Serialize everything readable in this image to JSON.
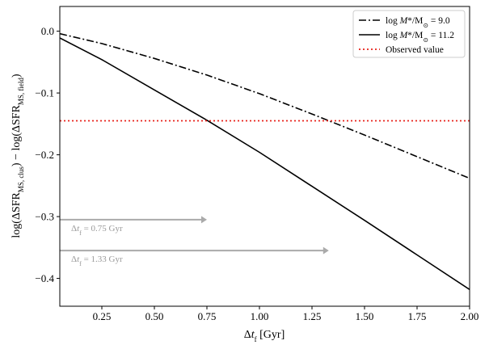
{
  "chart_data": {
    "type": "line",
    "xlabel": "Δt_f [Gyr]",
    "ylabel": "log(ΔSFR_MS,clus) − log(ΔSFR_MS,field)",
    "xlim": [
      0.05,
      2.0
    ],
    "ylim": [
      -0.445,
      0.04
    ],
    "xticks": [
      0.25,
      0.5,
      0.75,
      1.0,
      1.25,
      1.5,
      1.75,
      2.0
    ],
    "xtick_labels": [
      "0.25",
      "0.50",
      "0.75",
      "1.00",
      "1.25",
      "1.50",
      "1.75",
      "2.00"
    ],
    "yticks": [
      0.0,
      -0.1,
      -0.2,
      -0.3,
      -0.4
    ],
    "ytick_labels": [
      "0.0",
      "−0.1",
      "−0.2",
      "−0.3",
      "−0.4"
    ],
    "grid": false,
    "legend_position": "top-right",
    "series": [
      {
        "name": "log M*/M⊙ = 9.0",
        "style": "dashdot",
        "color": "#000000",
        "x": [
          0.05,
          0.25,
          0.5,
          0.75,
          1.0,
          1.25,
          1.5,
          1.75,
          2.0
        ],
        "y": [
          -0.004,
          -0.02,
          -0.044,
          -0.071,
          -0.101,
          -0.134,
          -0.168,
          -0.203,
          -0.238
        ]
      },
      {
        "name": "log M*/M⊙ = 11.2",
        "style": "solid",
        "color": "#000000",
        "x": [
          0.05,
          0.25,
          0.5,
          0.75,
          1.0,
          1.25,
          1.5,
          1.75,
          2.0
        ],
        "y": [
          -0.011,
          -0.046,
          -0.095,
          -0.144,
          -0.196,
          -0.251,
          -0.306,
          -0.362,
          -0.418
        ]
      },
      {
        "name": "Observed value",
        "style": "dotted",
        "color": "#e8201a",
        "x": [
          0.05,
          2.0
        ],
        "y": [
          -0.145,
          -0.145
        ]
      }
    ],
    "annotations": [
      {
        "text": "Δt_f = 0.75 Gyr",
        "x_start": 0.05,
        "x_end": 0.75,
        "y": -0.305,
        "color": "#aaaaaa"
      },
      {
        "text": "Δt_f = 1.33 Gyr",
        "x_start": 0.05,
        "x_end": 1.33,
        "y": -0.355,
        "color": "#aaaaaa"
      }
    ]
  }
}
